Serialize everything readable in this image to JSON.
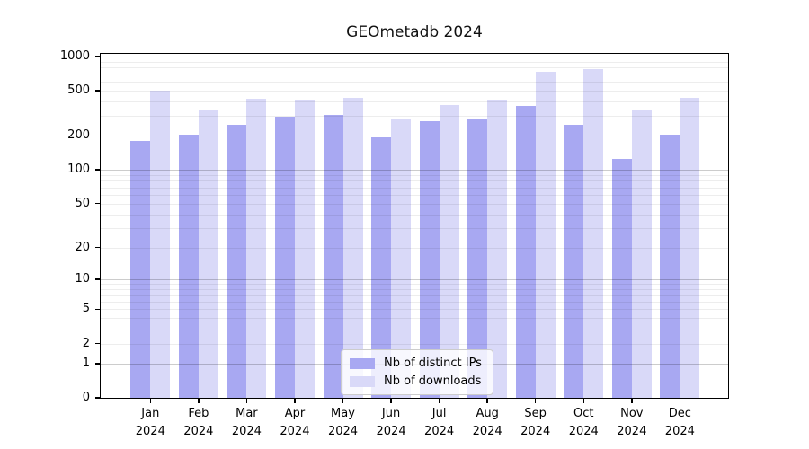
{
  "chart_data": {
    "type": "bar",
    "title": "GEOmetadb 2024",
    "categories": [
      "Jan\n2024",
      "Feb\n2024",
      "Mar\n2024",
      "Apr\n2024",
      "May\n2024",
      "Jun\n2024",
      "Jul\n2024",
      "Aug\n2024",
      "Sep\n2024",
      "Oct\n2024",
      "Nov\n2024",
      "Dec\n2024"
    ],
    "series": [
      {
        "name": "Nb of distinct IPs",
        "color": "#a8a8f2",
        "values": [
          180,
          205,
          250,
          295,
          305,
          195,
          270,
          285,
          365,
          250,
          125,
          205
        ]
      },
      {
        "name": "Nb of downloads",
        "color": "#d9d9f8",
        "values": [
          500,
          340,
          425,
          415,
          430,
          280,
          375,
          415,
          730,
          770,
          340,
          435
        ]
      }
    ],
    "xlabel": "",
    "ylabel": "",
    "y_scale": "log10(value+1)",
    "y_ticks": [
      0,
      1,
      2,
      5,
      10,
      20,
      50,
      100,
      200,
      500,
      1000
    ],
    "y_minor_gridlines": [
      2,
      3,
      4,
      5,
      6,
      7,
      8,
      9,
      20,
      30,
      40,
      50,
      60,
      70,
      80,
      90,
      200,
      300,
      400,
      500,
      600,
      700,
      800,
      900
    ],
    "y_major_gridlines": [
      1,
      10,
      100,
      1000
    ],
    "ylim": [
      0,
      1000
    ],
    "grid": "horizontal",
    "legend_position": "inside-bottom-center",
    "colors": {
      "background": "#ffffff",
      "axis": "#000000",
      "major_grid": "#cccccc",
      "minor_grid": "#ededed",
      "legend_border": "#cccccc"
    }
  }
}
